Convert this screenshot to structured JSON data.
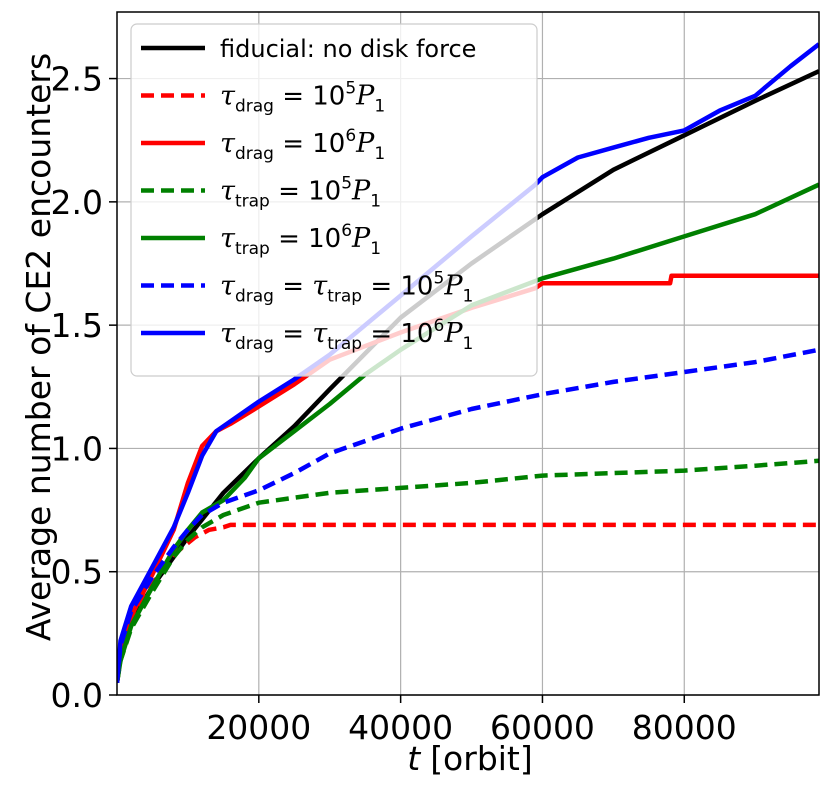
{
  "chart_data": {
    "type": "line",
    "xlabel_var": "t",
    "xlabel_unit": "[orbit]",
    "ylabel": "Average number of CE2 encounters",
    "xlim": [
      0,
      99000
    ],
    "ylim": [
      0,
      2.77
    ],
    "xticks": [
      20000,
      40000,
      60000,
      80000
    ],
    "xtick_labels": [
      "20000",
      "40000",
      "60000",
      "80000"
    ],
    "yticks": [
      0.0,
      0.5,
      1.0,
      1.5,
      2.0,
      2.5
    ],
    "ytick_labels": [
      "0.0",
      "0.5",
      "1.0",
      "1.5",
      "2.0",
      "2.5"
    ],
    "grid": true,
    "legend_position": "top-left",
    "series": [
      {
        "name": "fiducial: no disk force",
        "legend": {
          "text": "fiducial: no disk force"
        },
        "color": "#000000",
        "dash": "solid",
        "x": [
          0,
          500,
          2000,
          5000,
          10000,
          15000,
          20000,
          25000,
          30000,
          40000,
          50000,
          60000,
          70000,
          80000,
          90000,
          99000
        ],
        "y": [
          0.05,
          0.16,
          0.3,
          0.44,
          0.64,
          0.82,
          0.96,
          1.09,
          1.24,
          1.53,
          1.75,
          1.95,
          2.13,
          2.27,
          2.41,
          2.53
        ]
      },
      {
        "name": "tau_drag = 10^5 P_1 (dashed)",
        "legend": {
          "sym": "τ",
          "sub": "drag",
          "rhs": "= 10",
          "sup": "5",
          "P": "P",
          "Psub": "1"
        },
        "color": "#ff0000",
        "dash": "dashed",
        "x": [
          0,
          500,
          2000,
          5000,
          8000,
          11000,
          13000,
          15000,
          16000,
          99000
        ],
        "y": [
          0.05,
          0.15,
          0.29,
          0.45,
          0.57,
          0.64,
          0.67,
          0.68,
          0.69,
          0.69
        ]
      },
      {
        "name": "tau_drag = 10^6 P_1 (solid)",
        "legend": {
          "sym": "τ",
          "sub": "drag",
          "rhs": "= 10",
          "sup": "6",
          "P": "P",
          "Psub": "1"
        },
        "color": "#ff0000",
        "dash": "solid",
        "x": [
          0,
          500,
          2000,
          5000,
          8000,
          10000,
          12000,
          14000,
          16000,
          20000,
          25000,
          30000,
          40000,
          50000,
          59000,
          60000,
          70000,
          78000,
          78200,
          99000
        ],
        "y": [
          0.05,
          0.16,
          0.32,
          0.49,
          0.67,
          0.86,
          1.01,
          1.07,
          1.1,
          1.17,
          1.26,
          1.36,
          1.47,
          1.57,
          1.65,
          1.67,
          1.67,
          1.67,
          1.7,
          1.7
        ]
      },
      {
        "name": "tau_trap = 10^5 P_1 (dashed)",
        "legend": {
          "sym": "τ",
          "sub": "trap",
          "rhs": "= 10",
          "sup": "5",
          "P": "P",
          "Psub": "1"
        },
        "color": "#008000",
        "dash": "dashed",
        "x": [
          0,
          500,
          2000,
          5000,
          8000,
          10000,
          12000,
          15000,
          20000,
          25000,
          30000,
          40000,
          50000,
          60000,
          70000,
          80000,
          90000,
          99000
        ],
        "y": [
          0.05,
          0.14,
          0.27,
          0.42,
          0.56,
          0.63,
          0.68,
          0.73,
          0.78,
          0.8,
          0.82,
          0.84,
          0.86,
          0.89,
          0.9,
          0.91,
          0.93,
          0.95
        ]
      },
      {
        "name": "tau_trap = 10^6 P_1 (solid)",
        "legend": {
          "sym": "τ",
          "sub": "trap",
          "rhs": "= 10",
          "sup": "6",
          "P": "P",
          "Psub": "1"
        },
        "color": "#008000",
        "dash": "solid",
        "x": [
          0,
          500,
          2000,
          5000,
          8000,
          10000,
          12000,
          15000,
          18000,
          20000,
          25000,
          30000,
          35000,
          40000,
          50000,
          60000,
          70000,
          80000,
          90000,
          99000
        ],
        "y": [
          0.05,
          0.14,
          0.28,
          0.44,
          0.59,
          0.67,
          0.74,
          0.79,
          0.88,
          0.96,
          1.07,
          1.18,
          1.3,
          1.4,
          1.58,
          1.69,
          1.77,
          1.86,
          1.95,
          2.07
        ]
      },
      {
        "name": "tau_drag = tau_trap = 10^5 P_1 (dashed)",
        "legend": {
          "sym": "τ",
          "sub": "drag",
          "mid": " = ",
          "sym2": "τ",
          "sub2": "trap",
          "rhs": " = 10",
          "sup": "5",
          "P": "P",
          "Psub": "1"
        },
        "color": "#0000ff",
        "dash": "dashed",
        "x": [
          0,
          500,
          2000,
          5000,
          8000,
          10000,
          12000,
          15000,
          20000,
          25000,
          30000,
          40000,
          50000,
          60000,
          70000,
          80000,
          90000,
          99000
        ],
        "y": [
          0.05,
          0.2,
          0.34,
          0.48,
          0.6,
          0.67,
          0.73,
          0.78,
          0.83,
          0.9,
          0.98,
          1.08,
          1.16,
          1.22,
          1.27,
          1.31,
          1.35,
          1.4
        ]
      },
      {
        "name": "tau_drag = tau_trap = 10^6 P_1 (solid)",
        "legend": {
          "sym": "τ",
          "sub": "drag",
          "mid": " = ",
          "sym2": "τ",
          "sub2": "trap",
          "rhs": " = 10",
          "sup": "6",
          "P": "P",
          "Psub": "1"
        },
        "color": "#0000ff",
        "dash": "solid",
        "x": [
          0,
          500,
          2000,
          5000,
          8000,
          10000,
          12000,
          14000,
          16000,
          20000,
          25000,
          30000,
          40000,
          50000,
          59000,
          60000,
          65000,
          70000,
          75000,
          80000,
          85000,
          90000,
          95000,
          99000
        ],
        "y": [
          0.05,
          0.22,
          0.36,
          0.52,
          0.68,
          0.82,
          0.97,
          1.07,
          1.11,
          1.19,
          1.28,
          1.38,
          1.62,
          1.86,
          2.07,
          2.1,
          2.18,
          2.22,
          2.26,
          2.29,
          2.37,
          2.43,
          2.55,
          2.64
        ]
      }
    ]
  }
}
